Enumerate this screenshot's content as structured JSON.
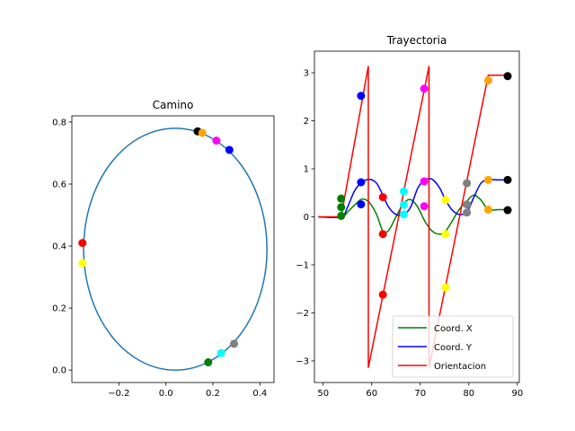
{
  "chart_data": [
    {
      "type": "scatter",
      "title": "Camino",
      "xlabel": "",
      "ylabel": "",
      "xlim": [
        -0.4,
        0.46
      ],
      "ylim": [
        -0.04,
        0.82
      ],
      "xticks": [
        -0.2,
        0.0,
        0.2,
        0.4
      ],
      "xtick_labels": [
        "−0.2",
        "0.0",
        "0.2",
        "0.4"
      ],
      "yticks": [
        0.0,
        0.2,
        0.4,
        0.6,
        0.8
      ],
      "ytick_labels": [
        "0.0",
        "0.2",
        "0.4",
        "0.6",
        "0.8"
      ],
      "circle": {
        "cx": 0.04,
        "cy": 0.39,
        "r": 0.39,
        "color": "#1f77b4"
      },
      "points": [
        {
          "x": 0.18,
          "y": 0.025,
          "color": "#008000"
        },
        {
          "x": 0.235,
          "y": 0.055,
          "color": "#00ffff"
        },
        {
          "x": 0.29,
          "y": 0.085,
          "color": "#808080"
        },
        {
          "x": -0.355,
          "y": 0.345,
          "color": "#ffff00"
        },
        {
          "x": -0.355,
          "y": 0.41,
          "color": "#ff0000"
        },
        {
          "x": 0.135,
          "y": 0.77,
          "color": "#000000"
        },
        {
          "x": 0.155,
          "y": 0.765,
          "color": "#ffa500"
        },
        {
          "x": 0.215,
          "y": 0.74,
          "color": "#ff00ff"
        },
        {
          "x": 0.27,
          "y": 0.71,
          "color": "#0000ff"
        }
      ]
    },
    {
      "type": "line",
      "title": "Trayectoria",
      "xlabel": "",
      "ylabel": "",
      "xlim": [
        48.2,
        90.4
      ],
      "ylim": [
        -3.45,
        3.45
      ],
      "xticks": [
        50,
        60,
        70,
        80,
        90
      ],
      "xtick_labels": [
        "50",
        "60",
        "70",
        "80",
        "90"
      ],
      "yticks": [
        -3,
        -2,
        -1,
        0,
        1,
        2,
        3
      ],
      "ytick_labels": [
        "−3",
        "−2",
        "−1",
        "0",
        "1",
        "2",
        "3"
      ],
      "series": [
        {
          "name": "Coord. X",
          "color": "#008000",
          "x": [
            49,
            53.7,
            55,
            56.5,
            58,
            59.5,
            61,
            62.3,
            63.5,
            65,
            66.6,
            68,
            69.5,
            71,
            72.5,
            74,
            75.2,
            76.5,
            78,
            79.6,
            81,
            82.5,
            84,
            86,
            88
          ],
          "y": [
            0,
            0,
            0.1,
            0.25,
            0.37,
            0.3,
            0.05,
            -0.3,
            -0.28,
            0,
            0.28,
            0.36,
            0.2,
            -0.1,
            -0.3,
            -0.36,
            -0.3,
            -0.1,
            0.15,
            0.33,
            0.45,
            0.35,
            0.15,
            0.15,
            0.15
          ]
        },
        {
          "name": "Coord. Y",
          "color": "#0000ff",
          "x": [
            49,
            53.7,
            55,
            56.5,
            58,
            59.5,
            61,
            62.3,
            63.5,
            65,
            66.6,
            68,
            69.5,
            71,
            72.5,
            74,
            75.2,
            76.5,
            78,
            79.6,
            81,
            82.5,
            84,
            86,
            88
          ],
          "y": [
            0,
            0,
            0.2,
            0.55,
            0.72,
            0.78,
            0.7,
            0.45,
            0.2,
            0.05,
            0.05,
            0.2,
            0.6,
            0.77,
            0.78,
            0.6,
            0.35,
            0.15,
            0.05,
            0.1,
            0.4,
            0.7,
            0.77,
            0.77,
            0.77
          ]
        },
        {
          "name": "Orientacion",
          "color": "#ff0000",
          "x": [
            49,
            53.7,
            59.3,
            59.3,
            71.8,
            71.8,
            84,
            88
          ],
          "y": [
            0,
            0,
            3.14,
            -3.14,
            3.14,
            -3.14,
            2.95,
            2.95
          ]
        }
      ],
      "markers": [
        {
          "x": 53.7,
          "y": 0.02,
          "color": "#008000"
        },
        {
          "x": 53.7,
          "y": 0.2,
          "color": "#008000"
        },
        {
          "x": 53.7,
          "y": 0.38,
          "color": "#008000"
        },
        {
          "x": 57.8,
          "y": 2.52,
          "color": "#0000ff"
        },
        {
          "x": 57.8,
          "y": 0.72,
          "color": "#0000ff"
        },
        {
          "x": 57.8,
          "y": 0.26,
          "color": "#0000ff"
        },
        {
          "x": 62.3,
          "y": 0.41,
          "color": "#ff0000"
        },
        {
          "x": 62.3,
          "y": -0.36,
          "color": "#ff0000"
        },
        {
          "x": 62.3,
          "y": -1.62,
          "color": "#ff0000"
        },
        {
          "x": 66.6,
          "y": 0.53,
          "color": "#00ffff"
        },
        {
          "x": 66.6,
          "y": 0.25,
          "color": "#00ffff"
        },
        {
          "x": 66.6,
          "y": 0.05,
          "color": "#00ffff"
        },
        {
          "x": 70.8,
          "y": 2.67,
          "color": "#ff00ff"
        },
        {
          "x": 70.8,
          "y": 0.74,
          "color": "#ff00ff"
        },
        {
          "x": 70.8,
          "y": 0.22,
          "color": "#ff00ff"
        },
        {
          "x": 75.2,
          "y": 0.35,
          "color": "#ffff00"
        },
        {
          "x": 75.2,
          "y": -0.36,
          "color": "#ffff00"
        },
        {
          "x": 75.2,
          "y": -1.47,
          "color": "#ffff00"
        },
        {
          "x": 79.6,
          "y": 0.7,
          "color": "#808080"
        },
        {
          "x": 79.6,
          "y": 0.26,
          "color": "#808080"
        },
        {
          "x": 79.6,
          "y": 0.09,
          "color": "#808080"
        },
        {
          "x": 84,
          "y": 2.84,
          "color": "#ffa500"
        },
        {
          "x": 84,
          "y": 0.77,
          "color": "#ffa500"
        },
        {
          "x": 84,
          "y": 0.15,
          "color": "#ffa500"
        },
        {
          "x": 88,
          "y": 2.93,
          "color": "#000000"
        },
        {
          "x": 88,
          "y": 0.77,
          "color": "#000000"
        },
        {
          "x": 88,
          "y": 0.14,
          "color": "#000000"
        }
      ],
      "legend": {
        "position": "lower-right"
      }
    }
  ]
}
